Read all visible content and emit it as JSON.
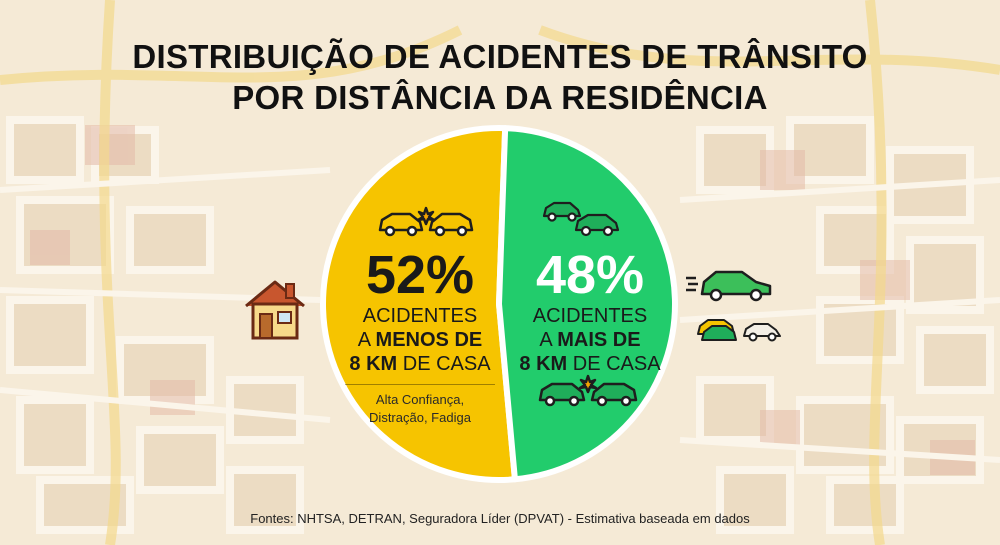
{
  "title": {
    "line1": "DISTRIBUIÇÃO DE ACIDENTES DE TRÂNSITO",
    "line2": "POR DISTÂNCIA DA RESIDÊNCIA"
  },
  "chart_data": {
    "type": "pie",
    "slices": [
      {
        "value": 52,
        "percent_label": "52%",
        "label_line1": "ACIDENTES",
        "label_line2_prefix": "A ",
        "label_line2_bold": "MENOS DE",
        "label_line3_bold": "8 KM",
        "label_line3_suffix": " DE CASA",
        "note_line1": "Alta Confiança,",
        "note_line2": "Distração, Fadiga",
        "color": "#f6c400"
      },
      {
        "value": 48,
        "percent_label": "48%",
        "label_line1": "ACIDENTES",
        "label_line2_prefix": "A ",
        "label_line2_bold": "MAIS DE",
        "label_line3_bold": "8 KM",
        "label_line3_suffix": " DE CASA",
        "color": "#22cc6c"
      }
    ]
  },
  "icons": {
    "home": "house-icon",
    "crash_yellow": "car-crash-icon",
    "cars_green": "two-cars-icon",
    "crash_green": "car-crash-icon",
    "car_moving": "moving-car-icon",
    "traffic_cars": "traffic-cars-icon"
  },
  "footer": {
    "source": "Fontes: NHTSA, DETRAN, Seguradora Líder (DPVAT) - Estimativa baseada em dados"
  }
}
